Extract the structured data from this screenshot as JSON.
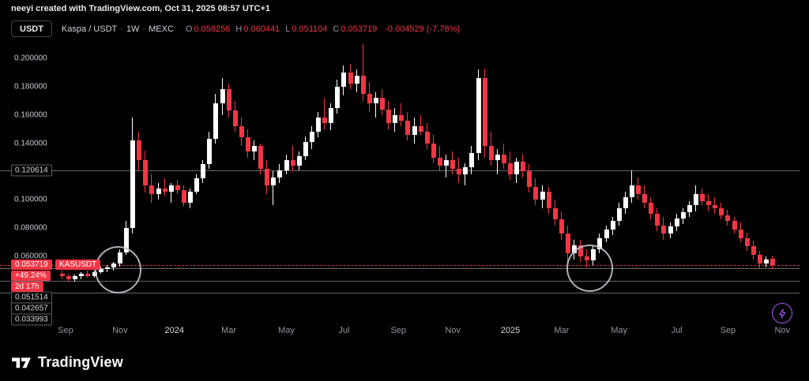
{
  "attribution": "neeyi created with TradingView.com, Oct 31, 2025 08:57 UTC+1",
  "toolbar": {
    "currency_button": "USDT"
  },
  "legend": {
    "symbol": "Kaspa / USDT",
    "interval": "1W",
    "exchange": "MEXC",
    "separator": "·",
    "ohlc": {
      "o_label": "O",
      "o": "0.058256",
      "h_label": "H",
      "h": "0.060441",
      "l_label": "L",
      "l": "0.051104",
      "c_label": "C",
      "c": "0.053719",
      "change": "-0.004529 (-7.78%)"
    }
  },
  "footer": {
    "logo_text": "TradingView"
  },
  "colors": {
    "up": "#ffffff",
    "down": "#f23645",
    "accent_purple": "#a855f7",
    "level_line": "#b7bbc4"
  },
  "chart_data": {
    "type": "candlestick",
    "title": "Kaspa / USDT · 1W · MEXC",
    "symbol": "KASUSDT",
    "interval": "1W",
    "y_range": [
      0.013,
      0.211
    ],
    "grid": false,
    "y_ticks": [
      "0.200000",
      "0.180000",
      "0.160000",
      "0.140000",
      "0.100000",
      "0.080000",
      "0.060000"
    ],
    "x_ticks": [
      {
        "label": "Sep",
        "week": 0.5,
        "major": false
      },
      {
        "label": "Nov",
        "week": 9,
        "major": false
      },
      {
        "label": "2024",
        "week": 17.5,
        "major": true
      },
      {
        "label": "Mar",
        "week": 26,
        "major": false
      },
      {
        "label": "May",
        "week": 35,
        "major": false
      },
      {
        "label": "Jul",
        "week": 44,
        "major": false
      },
      {
        "label": "Sep",
        "week": 52.5,
        "major": false
      },
      {
        "label": "Nov",
        "week": 61,
        "major": false
      },
      {
        "label": "2025",
        "week": 70,
        "major": true
      },
      {
        "label": "Mar",
        "week": 78,
        "major": false
      },
      {
        "label": "May",
        "week": 87,
        "major": false
      },
      {
        "label": "Jul",
        "week": 96,
        "major": false
      },
      {
        "label": "Sep",
        "week": 104,
        "major": false
      },
      {
        "label": "Nov",
        "week": 112.5,
        "major": false
      }
    ],
    "levels": [
      {
        "value": 0.120614,
        "label": "0.120614"
      },
      {
        "value": 0.051514,
        "label": "0.051514"
      },
      {
        "value": 0.042657,
        "label": "0.042657"
      },
      {
        "value": 0.033993,
        "label": "0.033993"
      }
    ],
    "last_price": {
      "value": 0.053719,
      "label": "0.053719",
      "symbol_tag": "KASUSDT",
      "change_pct": "+49.24%",
      "countdown": "2d 17h"
    },
    "circles": [
      {
        "week": 8.5,
        "price": 0.0517,
        "r_weeks": 3.4,
        "r_price": 0.0155
      },
      {
        "week": 82.2,
        "price": 0.0528,
        "r_weeks": 3.4,
        "r_price": 0.0155
      }
    ],
    "colors": {
      "up": "#ffffff",
      "down": "#f23645"
    },
    "candles": [
      [
        0.048,
        0.05,
        0.044,
        0.046
      ],
      [
        0.046,
        0.048,
        0.042,
        0.044
      ],
      [
        0.044,
        0.047,
        0.042,
        0.046
      ],
      [
        0.046,
        0.049,
        0.044,
        0.048
      ],
      [
        0.048,
        0.05,
        0.045,
        0.046
      ],
      [
        0.046,
        0.05,
        0.045,
        0.049
      ],
      [
        0.049,
        0.053,
        0.048,
        0.051
      ],
      [
        0.051,
        0.054,
        0.049,
        0.052
      ],
      [
        0.052,
        0.056,
        0.05,
        0.055
      ],
      [
        0.055,
        0.065,
        0.053,
        0.063
      ],
      [
        0.063,
        0.085,
        0.061,
        0.08
      ],
      [
        0.08,
        0.158,
        0.076,
        0.142
      ],
      [
        0.142,
        0.148,
        0.12,
        0.128
      ],
      [
        0.128,
        0.135,
        0.105,
        0.11
      ],
      [
        0.11,
        0.118,
        0.098,
        0.104
      ],
      [
        0.104,
        0.112,
        0.1,
        0.108
      ],
      [
        0.108,
        0.115,
        0.103,
        0.106
      ],
      [
        0.106,
        0.112,
        0.098,
        0.11
      ],
      [
        0.11,
        0.114,
        0.104,
        0.107
      ],
      [
        0.107,
        0.11,
        0.095,
        0.098
      ],
      [
        0.098,
        0.108,
        0.094,
        0.106
      ],
      [
        0.106,
        0.118,
        0.104,
        0.115
      ],
      [
        0.115,
        0.128,
        0.112,
        0.125
      ],
      [
        0.125,
        0.148,
        0.122,
        0.143
      ],
      [
        0.143,
        0.175,
        0.14,
        0.168
      ],
      [
        0.168,
        0.186,
        0.16,
        0.178
      ],
      [
        0.178,
        0.182,
        0.158,
        0.163
      ],
      [
        0.163,
        0.17,
        0.148,
        0.152
      ],
      [
        0.152,
        0.158,
        0.138,
        0.144
      ],
      [
        0.144,
        0.15,
        0.13,
        0.134
      ],
      [
        0.134,
        0.142,
        0.128,
        0.138
      ],
      [
        0.138,
        0.14,
        0.118,
        0.122
      ],
      [
        0.122,
        0.128,
        0.104,
        0.11
      ],
      [
        0.11,
        0.12,
        0.096,
        0.116
      ],
      [
        0.116,
        0.125,
        0.112,
        0.121
      ],
      [
        0.121,
        0.132,
        0.118,
        0.128
      ],
      [
        0.128,
        0.138,
        0.12,
        0.124
      ],
      [
        0.124,
        0.134,
        0.121,
        0.131
      ],
      [
        0.131,
        0.145,
        0.128,
        0.141
      ],
      [
        0.141,
        0.152,
        0.136,
        0.148
      ],
      [
        0.148,
        0.162,
        0.144,
        0.158
      ],
      [
        0.158,
        0.172,
        0.15,
        0.154
      ],
      [
        0.154,
        0.168,
        0.149,
        0.165
      ],
      [
        0.165,
        0.185,
        0.161,
        0.18
      ],
      [
        0.18,
        0.195,
        0.174,
        0.19
      ],
      [
        0.19,
        0.196,
        0.178,
        0.182
      ],
      [
        0.182,
        0.192,
        0.176,
        0.188
      ],
      [
        0.188,
        0.21,
        0.17,
        0.175
      ],
      [
        0.175,
        0.183,
        0.162,
        0.168
      ],
      [
        0.168,
        0.176,
        0.158,
        0.172
      ],
      [
        0.172,
        0.178,
        0.16,
        0.164
      ],
      [
        0.164,
        0.17,
        0.15,
        0.154
      ],
      [
        0.154,
        0.165,
        0.148,
        0.16
      ],
      [
        0.16,
        0.168,
        0.152,
        0.156
      ],
      [
        0.156,
        0.162,
        0.142,
        0.146
      ],
      [
        0.146,
        0.158,
        0.14,
        0.152
      ],
      [
        0.152,
        0.16,
        0.146,
        0.148
      ],
      [
        0.148,
        0.154,
        0.136,
        0.14
      ],
      [
        0.14,
        0.146,
        0.126,
        0.13
      ],
      [
        0.13,
        0.138,
        0.12,
        0.124
      ],
      [
        0.124,
        0.132,
        0.116,
        0.128
      ],
      [
        0.128,
        0.134,
        0.118,
        0.122
      ],
      [
        0.122,
        0.13,
        0.112,
        0.118
      ],
      [
        0.118,
        0.126,
        0.11,
        0.123
      ],
      [
        0.123,
        0.138,
        0.118,
        0.133
      ],
      [
        0.133,
        0.192,
        0.128,
        0.186
      ],
      [
        0.186,
        0.193,
        0.13,
        0.138
      ],
      [
        0.138,
        0.148,
        0.124,
        0.128
      ],
      [
        0.128,
        0.136,
        0.118,
        0.132
      ],
      [
        0.132,
        0.14,
        0.122,
        0.126
      ],
      [
        0.126,
        0.134,
        0.114,
        0.118
      ],
      [
        0.118,
        0.13,
        0.112,
        0.127
      ],
      [
        0.127,
        0.132,
        0.116,
        0.12
      ],
      [
        0.12,
        0.125,
        0.105,
        0.109
      ],
      [
        0.109,
        0.115,
        0.096,
        0.1
      ],
      [
        0.1,
        0.11,
        0.094,
        0.106
      ],
      [
        0.106,
        0.109,
        0.09,
        0.094
      ],
      [
        0.094,
        0.1,
        0.082,
        0.086
      ],
      [
        0.086,
        0.092,
        0.072,
        0.076
      ],
      [
        0.076,
        0.082,
        0.055,
        0.062
      ],
      [
        0.062,
        0.072,
        0.058,
        0.068
      ],
      [
        0.068,
        0.072,
        0.056,
        0.06
      ],
      [
        0.06,
        0.065,
        0.052,
        0.057
      ],
      [
        0.057,
        0.068,
        0.054,
        0.065
      ],
      [
        0.065,
        0.076,
        0.062,
        0.073
      ],
      [
        0.073,
        0.082,
        0.07,
        0.079
      ],
      [
        0.079,
        0.088,
        0.075,
        0.085
      ],
      [
        0.085,
        0.098,
        0.082,
        0.094
      ],
      [
        0.094,
        0.106,
        0.09,
        0.102
      ],
      [
        0.102,
        0.121,
        0.098,
        0.11
      ],
      [
        0.11,
        0.116,
        0.1,
        0.104
      ],
      [
        0.104,
        0.11,
        0.094,
        0.098
      ],
      [
        0.098,
        0.102,
        0.086,
        0.09
      ],
      [
        0.09,
        0.094,
        0.078,
        0.082
      ],
      [
        0.082,
        0.088,
        0.072,
        0.076
      ],
      [
        0.076,
        0.084,
        0.073,
        0.081
      ],
      [
        0.081,
        0.09,
        0.078,
        0.087
      ],
      [
        0.087,
        0.094,
        0.083,
        0.091
      ],
      [
        0.091,
        0.099,
        0.088,
        0.096
      ],
      [
        0.096,
        0.11,
        0.092,
        0.104
      ],
      [
        0.104,
        0.108,
        0.096,
        0.099
      ],
      [
        0.099,
        0.104,
        0.092,
        0.096
      ],
      [
        0.096,
        0.102,
        0.09,
        0.094
      ],
      [
        0.094,
        0.098,
        0.086,
        0.089
      ],
      [
        0.089,
        0.093,
        0.082,
        0.085
      ],
      [
        0.085,
        0.088,
        0.076,
        0.079
      ],
      [
        0.079,
        0.084,
        0.07,
        0.073
      ],
      [
        0.073,
        0.077,
        0.064,
        0.067
      ],
      [
        0.067,
        0.071,
        0.058,
        0.061
      ],
      [
        0.061,
        0.064,
        0.051,
        0.055
      ],
      [
        0.055,
        0.06,
        0.052,
        0.058
      ],
      [
        0.058256,
        0.060441,
        0.051104,
        0.053719
      ]
    ]
  }
}
